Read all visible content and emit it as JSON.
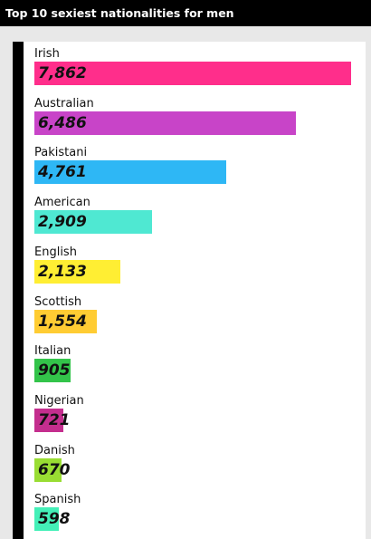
{
  "chart_data": {
    "type": "bar",
    "title": "Top 10 sexiest nationalities for men",
    "orientation": "horizontal",
    "categories": [
      "Irish",
      "Australian",
      "Pakistani",
      "American",
      "English",
      "Scottish",
      "Italian",
      "Nigerian",
      "Danish",
      "Spanish"
    ],
    "values": [
      7862,
      6486,
      4761,
      2909,
      2133,
      1554,
      905,
      721,
      670,
      598
    ],
    "value_labels": [
      "7,862",
      "6,486",
      "4,761",
      "2,909",
      "2,133",
      "1,554",
      "905",
      "721",
      "670",
      "598"
    ],
    "xlim": [
      0,
      7862
    ],
    "grid": false,
    "legend": "none",
    "colors": [
      "#ff2e8b",
      "#c844c8",
      "#2eb7f5",
      "#4fe8d2",
      "#ffee33",
      "#ffcc33",
      "#33c44a",
      "#c42e8e",
      "#99dd33",
      "#44f0b8"
    ],
    "accent_color": "#000000"
  }
}
